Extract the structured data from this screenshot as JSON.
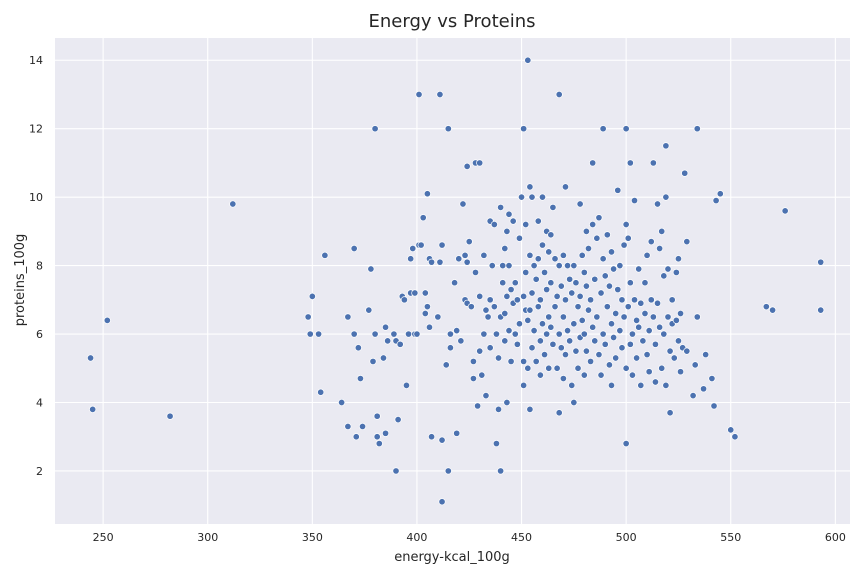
{
  "chart_data": {
    "type": "scatter",
    "title": "Energy vs Proteins",
    "xlabel": "energy-kcal_100g",
    "ylabel": "proteins_100g",
    "xlim": [
      227,
      607
    ],
    "ylim": [
      0.45,
      14.65
    ],
    "xticks": [
      250,
      300,
      350,
      400,
      450,
      500,
      550,
      600
    ],
    "yticks": [
      2,
      4,
      6,
      8,
      10,
      12,
      14
    ],
    "grid": true,
    "background": "#EAEAF2",
    "grid_color": "#FFFFFF",
    "point_color": "#4C72B0",
    "points": [
      [
        244,
        5.3
      ],
      [
        245,
        3.8
      ],
      [
        252,
        6.4
      ],
      [
        282,
        3.6
      ],
      [
        312,
        9.8
      ],
      [
        348,
        6.5
      ],
      [
        349,
        6.0
      ],
      [
        350,
        7.1
      ],
      [
        353,
        6.0
      ],
      [
        354,
        4.3
      ],
      [
        356,
        8.3
      ],
      [
        364,
        4.0
      ],
      [
        367,
        6.5
      ],
      [
        367,
        3.3
      ],
      [
        370,
        8.5
      ],
      [
        370,
        6.0
      ],
      [
        371,
        3.0
      ],
      [
        372,
        5.6
      ],
      [
        373,
        4.7
      ],
      [
        374,
        3.3
      ],
      [
        377,
        6.7
      ],
      [
        378,
        7.9
      ],
      [
        379,
        5.2
      ],
      [
        380,
        12.0
      ],
      [
        380,
        6.0
      ],
      [
        381,
        3.6
      ],
      [
        381,
        3.0
      ],
      [
        382,
        2.8
      ],
      [
        384,
        5.3
      ],
      [
        385,
        6.2
      ],
      [
        385,
        3.1
      ],
      [
        386,
        5.8
      ],
      [
        389,
        6.0
      ],
      [
        390,
        2.0
      ],
      [
        390,
        5.8
      ],
      [
        391,
        3.5
      ],
      [
        392,
        5.7
      ],
      [
        393,
        7.1
      ],
      [
        394,
        7.0
      ],
      [
        395,
        4.5
      ],
      [
        396,
        6.0
      ],
      [
        397,
        8.2
      ],
      [
        397,
        7.2
      ],
      [
        398,
        8.5
      ],
      [
        399,
        7.2
      ],
      [
        399,
        6.0
      ],
      [
        400,
        6.0
      ],
      [
        401,
        13.0
      ],
      [
        401,
        8.6
      ],
      [
        402,
        8.6
      ],
      [
        403,
        9.4
      ],
      [
        404,
        7.2
      ],
      [
        404,
        6.6
      ],
      [
        405,
        10.1
      ],
      [
        405,
        6.8
      ],
      [
        406,
        8.2
      ],
      [
        406,
        6.2
      ],
      [
        407,
        3.0
      ],
      [
        407,
        8.1
      ],
      [
        410,
        6.5
      ],
      [
        411,
        13.0
      ],
      [
        411,
        8.1
      ],
      [
        412,
        8.6
      ],
      [
        412,
        2.9
      ],
      [
        412,
        1.1
      ],
      [
        414,
        5.1
      ],
      [
        415,
        12.0
      ],
      [
        415,
        2.0
      ],
      [
        416,
        6.0
      ],
      [
        416,
        5.6
      ],
      [
        418,
        7.5
      ],
      [
        419,
        3.1
      ],
      [
        419,
        6.1
      ],
      [
        420,
        8.2
      ],
      [
        421,
        5.8
      ],
      [
        422,
        9.8
      ],
      [
        423,
        8.3
      ],
      [
        423,
        7.0
      ],
      [
        424,
        10.9
      ],
      [
        424,
        6.9
      ],
      [
        424,
        8.1
      ],
      [
        425,
        8.7
      ],
      [
        426,
        6.8
      ],
      [
        427,
        5.2
      ],
      [
        427,
        4.7
      ],
      [
        428,
        11.0
      ],
      [
        428,
        7.8
      ],
      [
        429,
        3.9
      ],
      [
        430,
        11.0
      ],
      [
        430,
        7.1
      ],
      [
        430,
        5.5
      ],
      [
        431,
        4.8
      ],
      [
        432,
        6.0
      ],
      [
        432,
        8.3
      ],
      [
        433,
        4.2
      ],
      [
        433,
        6.7
      ],
      [
        434,
        6.5
      ],
      [
        435,
        7.0
      ],
      [
        435,
        9.3
      ],
      [
        435,
        5.6
      ],
      [
        436,
        8.0
      ],
      [
        437,
        6.8
      ],
      [
        437,
        9.2
      ],
      [
        438,
        2.8
      ],
      [
        438,
        6.0
      ],
      [
        439,
        5.3
      ],
      [
        439,
        3.8
      ],
      [
        440,
        9.7
      ],
      [
        440,
        6.5
      ],
      [
        440,
        2.0
      ],
      [
        441,
        8.0
      ],
      [
        441,
        7.5
      ],
      [
        442,
        6.6
      ],
      [
        442,
        5.8
      ],
      [
        442,
        8.5
      ],
      [
        443,
        9.0
      ],
      [
        443,
        7.1
      ],
      [
        443,
        4.0
      ],
      [
        444,
        9.5
      ],
      [
        444,
        6.1
      ],
      [
        444,
        8.0
      ],
      [
        445,
        5.2
      ],
      [
        445,
        7.3
      ],
      [
        446,
        9.3
      ],
      [
        446,
        6.9
      ],
      [
        447,
        7.5
      ],
      [
        447,
        6.0
      ],
      [
        448,
        5.7
      ],
      [
        448,
        7.0
      ],
      [
        449,
        8.8
      ],
      [
        449,
        6.3
      ],
      [
        450,
        10.0
      ],
      [
        451,
        12.0
      ],
      [
        451,
        7.1
      ],
      [
        451,
        5.2
      ],
      [
        451,
        4.5
      ],
      [
        452,
        6.7
      ],
      [
        452,
        7.8
      ],
      [
        452,
        9.2
      ],
      [
        453,
        14.0
      ],
      [
        453,
        6.4
      ],
      [
        453,
        5.0
      ],
      [
        454,
        10.3
      ],
      [
        454,
        8.3
      ],
      [
        454,
        6.7
      ],
      [
        454,
        3.8
      ],
      [
        455,
        10.0
      ],
      [
        455,
        7.2
      ],
      [
        455,
        5.6
      ],
      [
        456,
        8.0
      ],
      [
        456,
        6.1
      ],
      [
        457,
        7.6
      ],
      [
        457,
        5.2
      ],
      [
        458,
        9.3
      ],
      [
        458,
        6.8
      ],
      [
        458,
        8.2
      ],
      [
        459,
        7.0
      ],
      [
        459,
        5.8
      ],
      [
        459,
        4.8
      ],
      [
        460,
        10.0
      ],
      [
        460,
        8.6
      ],
      [
        460,
        6.3
      ],
      [
        461,
        7.8
      ],
      [
        461,
        5.4
      ],
      [
        462,
        9.0
      ],
      [
        462,
        7.3
      ],
      [
        462,
        6.0
      ],
      [
        463,
        8.4
      ],
      [
        463,
        6.5
      ],
      [
        463,
        5.0
      ],
      [
        464,
        8.9
      ],
      [
        464,
        7.5
      ],
      [
        464,
        6.2
      ],
      [
        465,
        9.7
      ],
      [
        465,
        5.7
      ],
      [
        466,
        8.2
      ],
      [
        466,
        6.8
      ],
      [
        467,
        7.1
      ],
      [
        467,
        5.0
      ],
      [
        468,
        13.0
      ],
      [
        468,
        3.7
      ],
      [
        468,
        8.0
      ],
      [
        468,
        6.0
      ],
      [
        469,
        7.4
      ],
      [
        469,
        5.6
      ],
      [
        470,
        8.3
      ],
      [
        470,
        6.5
      ],
      [
        470,
        4.7
      ],
      [
        471,
        10.3
      ],
      [
        471,
        7.0
      ],
      [
        471,
        5.4
      ],
      [
        472,
        8.0
      ],
      [
        472,
        6.1
      ],
      [
        473,
        7.6
      ],
      [
        473,
        5.8
      ],
      [
        474,
        4.5
      ],
      [
        474,
        7.2
      ],
      [
        475,
        8.0
      ],
      [
        475,
        6.3
      ],
      [
        475,
        4.0
      ],
      [
        476,
        7.5
      ],
      [
        476,
        5.5
      ],
      [
        477,
        6.8
      ],
      [
        477,
        5.0
      ],
      [
        478,
        9.8
      ],
      [
        478,
        7.1
      ],
      [
        478,
        5.9
      ],
      [
        479,
        8.3
      ],
      [
        479,
        6.4
      ],
      [
        480,
        7.8
      ],
      [
        480,
        6.0
      ],
      [
        480,
        4.8
      ],
      [
        481,
        9.0
      ],
      [
        481,
        7.4
      ],
      [
        481,
        5.5
      ],
      [
        482,
        8.5
      ],
      [
        482,
        6.7
      ],
      [
        483,
        7.0
      ],
      [
        483,
        5.2
      ],
      [
        484,
        11.0
      ],
      [
        484,
        9.2
      ],
      [
        484,
        6.2
      ],
      [
        485,
        7.6
      ],
      [
        485,
        5.8
      ],
      [
        486,
        8.8
      ],
      [
        486,
        6.5
      ],
      [
        487,
        9.4
      ],
      [
        487,
        5.4
      ],
      [
        488,
        7.2
      ],
      [
        488,
        4.8
      ],
      [
        489,
        12.0
      ],
      [
        489,
        8.2
      ],
      [
        489,
        6.0
      ],
      [
        490,
        7.7
      ],
      [
        490,
        5.7
      ],
      [
        491,
        8.9
      ],
      [
        491,
        6.8
      ],
      [
        492,
        7.4
      ],
      [
        492,
        5.1
      ],
      [
        493,
        8.4
      ],
      [
        493,
        6.3
      ],
      [
        493,
        4.5
      ],
      [
        494,
        7.9
      ],
      [
        494,
        5.9
      ],
      [
        495,
        6.6
      ],
      [
        495,
        5.3
      ],
      [
        496,
        10.2
      ],
      [
        496,
        7.3
      ],
      [
        497,
        8.0
      ],
      [
        497,
        6.1
      ],
      [
        498,
        5.6
      ],
      [
        498,
        7.0
      ],
      [
        499,
        8.6
      ],
      [
        499,
        6.5
      ],
      [
        500,
        12.0
      ],
      [
        500,
        9.2
      ],
      [
        500,
        5.0
      ],
      [
        500,
        2.8
      ],
      [
        501,
        8.8
      ],
      [
        501,
        6.8
      ],
      [
        502,
        11.0
      ],
      [
        502,
        7.5
      ],
      [
        502,
        5.7
      ],
      [
        503,
        6.0
      ],
      [
        503,
        4.8
      ],
      [
        504,
        9.9
      ],
      [
        504,
        7.0
      ],
      [
        505,
        6.4
      ],
      [
        505,
        5.3
      ],
      [
        506,
        7.9
      ],
      [
        506,
        6.2
      ],
      [
        507,
        4.5
      ],
      [
        507,
        6.9
      ],
      [
        508,
        5.8
      ],
      [
        509,
        7.5
      ],
      [
        509,
        6.6
      ],
      [
        510,
        8.3
      ],
      [
        510,
        5.4
      ],
      [
        511,
        6.1
      ],
      [
        511,
        4.9
      ],
      [
        512,
        8.7
      ],
      [
        512,
        7.0
      ],
      [
        513,
        11.0
      ],
      [
        513,
        6.5
      ],
      [
        514,
        5.7
      ],
      [
        514,
        4.6
      ],
      [
        515,
        9.8
      ],
      [
        515,
        6.9
      ],
      [
        516,
        8.5
      ],
      [
        516,
        6.2
      ],
      [
        517,
        9.0
      ],
      [
        517,
        5.0
      ],
      [
        518,
        7.7
      ],
      [
        518,
        6.0
      ],
      [
        519,
        11.5
      ],
      [
        519,
        10.0
      ],
      [
        519,
        4.5
      ],
      [
        520,
        7.9
      ],
      [
        520,
        6.5
      ],
      [
        521,
        5.5
      ],
      [
        521,
        3.7
      ],
      [
        522,
        7.0
      ],
      [
        522,
        6.3
      ],
      [
        523,
        5.3
      ],
      [
        524,
        7.8
      ],
      [
        524,
        6.4
      ],
      [
        525,
        8.2
      ],
      [
        525,
        5.8
      ],
      [
        526,
        4.9
      ],
      [
        526,
        6.6
      ],
      [
        527,
        5.6
      ],
      [
        528,
        10.7
      ],
      [
        529,
        8.7
      ],
      [
        529,
        5.5
      ],
      [
        532,
        4.2
      ],
      [
        533,
        5.1
      ],
      [
        534,
        12.0
      ],
      [
        534,
        6.5
      ],
      [
        537,
        4.4
      ],
      [
        538,
        5.4
      ],
      [
        541,
        4.7
      ],
      [
        542,
        3.9
      ],
      [
        543,
        9.9
      ],
      [
        545,
        10.1
      ],
      [
        550,
        3.2
      ],
      [
        552,
        3.0
      ],
      [
        567,
        6.8
      ],
      [
        570,
        6.7
      ],
      [
        576,
        9.6
      ],
      [
        593,
        8.1
      ],
      [
        593,
        6.7
      ]
    ]
  }
}
